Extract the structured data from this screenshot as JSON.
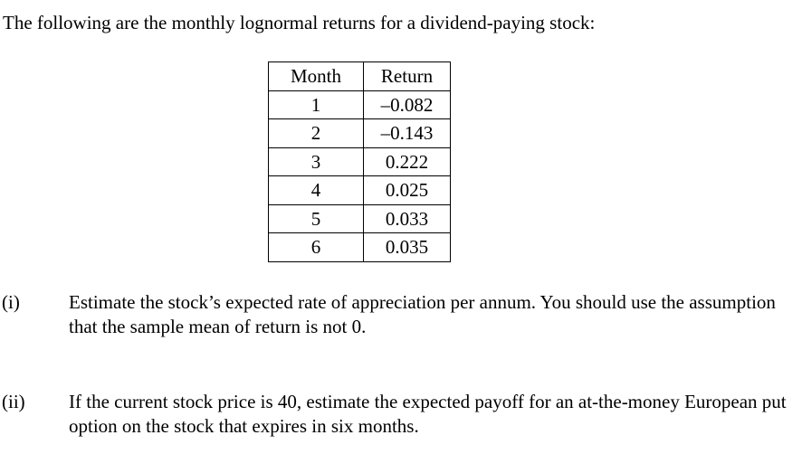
{
  "intro": "The following are the monthly lognormal returns for a dividend-paying stock:",
  "table": {
    "headers": [
      "Month",
      "Return"
    ],
    "rows": [
      [
        "1",
        "–0.082"
      ],
      [
        "2",
        "–0.143"
      ],
      [
        "3",
        "0.222"
      ],
      [
        "4",
        "0.025"
      ],
      [
        "5",
        "0.033"
      ],
      [
        "6",
        "0.035"
      ]
    ]
  },
  "questions": [
    {
      "number": "(i)",
      "text": "Estimate the stock’s expected rate of appreciation per annum. You should use the assumption that the sample mean of return is not 0."
    },
    {
      "number": "(ii)",
      "text": "If the current stock price is 40, estimate the expected payoff for an at-the-money European put option on the stock that expires in six months."
    }
  ]
}
